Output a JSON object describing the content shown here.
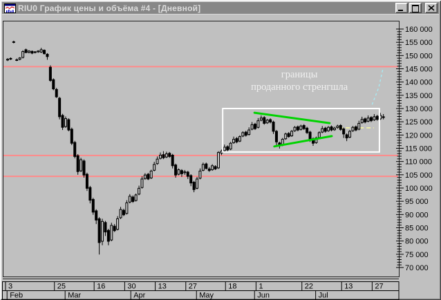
{
  "window": {
    "title": "RIU0 График цены и объёма #4 - [Дневной]",
    "icon": "price-volume-chart-icon",
    "controls": [
      {
        "name": "minimize",
        "label": "Свернуть"
      },
      {
        "name": "maximize",
        "label": "Развернуть"
      },
      {
        "name": "close",
        "label": "Закрыть"
      }
    ]
  },
  "chart_data": {
    "type": "candlestick",
    "instrument": "RIU0",
    "period": "Дневной",
    "background": "#c0c0c0",
    "candle_color": "#000000",
    "y_axis": {
      "min": 70000,
      "max": 160000,
      "major_step": 5000,
      "minor_step": 1000,
      "labels": [
        "160 000",
        "155 000",
        "150 000",
        "145 000",
        "140 000",
        "135 000",
        "130 000",
        "125 000",
        "120 000",
        "115 000",
        "110 000",
        "105 000",
        "100 000",
        "95 000",
        "90 000",
        "85 000",
        "80 000",
        "75 000",
        "70 000"
      ]
    },
    "x_axis": {
      "day_ticks": [
        {
          "label": "3",
          "i": 0
        },
        {
          "label": "25",
          "i": 16
        },
        {
          "label": "16",
          "i": 29
        },
        {
          "label": "30",
          "i": 39
        },
        {
          "label": "13",
          "i": 49
        },
        {
          "label": "27",
          "i": 59
        },
        {
          "label": "18",
          "i": 72
        },
        {
          "label": "1",
          "i": 82
        },
        {
          "label": "22",
          "i": 97
        },
        {
          "label": "13",
          "i": 110
        },
        {
          "label": "27",
          "i": 120
        }
      ],
      "months": [
        {
          "label": "Feb",
          "i": 0.5
        },
        {
          "label": "Mar",
          "i": 19.5
        },
        {
          "label": "Apr",
          "i": 41
        },
        {
          "label": "May",
          "i": 62.5
        },
        {
          "label": "Jun",
          "i": 81.5
        },
        {
          "label": "Jul",
          "i": 101.5
        }
      ]
    },
    "candles": [
      [
        148300,
        149000,
        147900,
        148600
      ],
      [
        148700,
        149300,
        148300,
        148900
      ],
      [
        155000,
        155600,
        154600,
        155200
      ],
      [
        148400,
        148900,
        147900,
        148200
      ],
      [
        148600,
        149400,
        148200,
        149100
      ],
      [
        149300,
        152000,
        148900,
        151500
      ],
      [
        152200,
        152600,
        150900,
        151100
      ],
      [
        151200,
        152000,
        150800,
        151700
      ],
      [
        151600,
        151900,
        150500,
        150900
      ],
      [
        151200,
        151700,
        150800,
        151400
      ],
      [
        151400,
        152000,
        151000,
        151700
      ],
      [
        151300,
        152900,
        151000,
        152200
      ],
      [
        152000,
        152300,
        150400,
        150700
      ],
      [
        150500,
        150900,
        148400,
        149600
      ],
      [
        145600,
        146300,
        140100,
        140600
      ],
      [
        140900,
        141400,
        136900,
        137400
      ],
      [
        137200,
        137800,
        134000,
        134400
      ],
      [
        133900,
        134400,
        125900,
        126900
      ],
      [
        127400,
        128000,
        121900,
        122900
      ],
      [
        123200,
        127000,
        122700,
        126200
      ],
      [
        125800,
        126300,
        121400,
        121900
      ],
      [
        122200,
        122800,
        116200,
        116900
      ],
      [
        117200,
        117800,
        111200,
        111900
      ],
      [
        112200,
        112800,
        105000,
        106200
      ],
      [
        106500,
        111400,
        106000,
        110700
      ],
      [
        110200,
        110800,
        103900,
        104900
      ],
      [
        105200,
        105800,
        98900,
        99900
      ],
      [
        100200,
        100800,
        94200,
        95400
      ],
      [
        95700,
        96300,
        89900,
        90900
      ],
      [
        91400,
        92000,
        86400,
        87900
      ],
      [
        88400,
        89000,
        74900,
        79400
      ],
      [
        79900,
        88400,
        78400,
        87400
      ],
      [
        87000,
        87600,
        81900,
        83400
      ],
      [
        84000,
        84600,
        78400,
        79900
      ],
      [
        80400,
        86900,
        79900,
        85900
      ],
      [
        85600,
        86400,
        83400,
        83900
      ],
      [
        84400,
        89400,
        84000,
        88400
      ],
      [
        88800,
        92900,
        88300,
        91900
      ],
      [
        91600,
        92200,
        89400,
        89900
      ],
      [
        90400,
        95400,
        90000,
        94400
      ],
      [
        94700,
        97700,
        94200,
        96900
      ],
      [
        96600,
        97200,
        94400,
        94900
      ],
      [
        95300,
        97900,
        94900,
        97400
      ],
      [
        97700,
        100900,
        97300,
        99900
      ],
      [
        100200,
        104400,
        99800,
        103400
      ],
      [
        103600,
        105600,
        103100,
        104900
      ],
      [
        105200,
        105700,
        103000,
        103400
      ],
      [
        103800,
        106900,
        103400,
        106400
      ],
      [
        106700,
        109900,
        106300,
        108900
      ],
      [
        109200,
        111900,
        108800,
        110900
      ],
      [
        111200,
        113400,
        110800,
        112400
      ],
      [
        112600,
        113900,
        110900,
        111400
      ],
      [
        111700,
        113700,
        111300,
        112900
      ],
      [
        113100,
        113600,
        111400,
        111900
      ],
      [
        112400,
        112900,
        107400,
        108400
      ],
      [
        108700,
        109200,
        103900,
        104900
      ],
      [
        105200,
        107400,
        104800,
        106900
      ],
      [
        106600,
        107100,
        104200,
        105400
      ],
      [
        105800,
        106800,
        105000,
        106100
      ],
      [
        106000,
        106500,
        103400,
        104400
      ],
      [
        104700,
        105200,
        100700,
        101900
      ],
      [
        102200,
        102700,
        98400,
        99400
      ],
      [
        99900,
        104200,
        99500,
        103400
      ],
      [
        103700,
        107400,
        103300,
        106400
      ],
      [
        106700,
        109600,
        106300,
        108900
      ],
      [
        109100,
        109600,
        107000,
        107400
      ],
      [
        107200,
        107900,
        106100,
        106600
      ],
      [
        106900,
        109000,
        106500,
        108400
      ],
      [
        108100,
        108600,
        106800,
        107200
      ],
      [
        107600,
        113900,
        107200,
        113400
      ],
      [
        113200,
        114500,
        112400,
        113900
      ],
      [
        114100,
        116400,
        113600,
        115400
      ],
      [
        115600,
        116100,
        113600,
        114400
      ],
      [
        114700,
        117400,
        114300,
        116900
      ],
      [
        117100,
        119400,
        116700,
        118400
      ],
      [
        118700,
        119200,
        116900,
        117400
      ],
      [
        117700,
        119900,
        117300,
        119400
      ],
      [
        119600,
        121400,
        119200,
        120900
      ],
      [
        121100,
        121600,
        119400,
        119900
      ],
      [
        120200,
        122900,
        119800,
        121900
      ],
      [
        122200,
        124900,
        121800,
        123900
      ],
      [
        124100,
        124600,
        121900,
        122400
      ],
      [
        122900,
        126400,
        122500,
        125400
      ],
      [
        125600,
        127400,
        125200,
        126400
      ],
      [
        126600,
        127100,
        123900,
        124400
      ],
      [
        124600,
        126100,
        124200,
        125600
      ],
      [
        125800,
        126300,
        124400,
        124900
      ],
      [
        124900,
        125400,
        120400,
        121400
      ],
      [
        121400,
        121900,
        115900,
        117400
      ],
      [
        117000,
        117500,
        114900,
        115900
      ],
      [
        116200,
        118900,
        115800,
        118400
      ],
      [
        118600,
        120900,
        118200,
        120400
      ],
      [
        120600,
        121100,
        119000,
        119400
      ],
      [
        119700,
        121900,
        119300,
        121400
      ],
      [
        121600,
        123400,
        121200,
        122900
      ],
      [
        123100,
        123600,
        121400,
        121900
      ],
      [
        122100,
        123900,
        121700,
        123400
      ],
      [
        123600,
        124100,
        121900,
        122400
      ],
      [
        122600,
        123100,
        120400,
        120900
      ],
      [
        121100,
        121600,
        117400,
        118400
      ],
      [
        118600,
        119100,
        115900,
        116900
      ],
      [
        117100,
        119400,
        116700,
        118900
      ],
      [
        119100,
        121400,
        118700,
        120900
      ],
      [
        121100,
        123400,
        120700,
        122400
      ],
      [
        122600,
        123100,
        120900,
        121400
      ],
      [
        121600,
        123400,
        121200,
        122900
      ],
      [
        123100,
        123600,
        121400,
        121900
      ],
      [
        122000,
        123100,
        121600,
        122600
      ],
      [
        122800,
        123900,
        122400,
        123400
      ],
      [
        123600,
        124100,
        121600,
        122100
      ],
      [
        122300,
        122800,
        118900,
        120400
      ],
      [
        120100,
        120600,
        117700,
        118900
      ],
      [
        119200,
        121900,
        118800,
        121400
      ],
      [
        121600,
        123400,
        121200,
        122900
      ],
      [
        123100,
        123600,
        121400,
        121900
      ],
      [
        122200,
        125400,
        121800,
        124400
      ],
      [
        124700,
        126900,
        124300,
        125900
      ],
      [
        126100,
        126600,
        124400,
        124900
      ],
      [
        125200,
        127400,
        124800,
        126400
      ],
      [
        126600,
        127100,
        124900,
        125400
      ],
      [
        125700,
        127900,
        125300,
        126900
      ],
      [
        127100,
        127600,
        125400,
        125900
      ],
      [
        126100,
        128400,
        125700,
        127400
      ],
      [
        126900,
        127900,
        125900,
        126600
      ]
    ],
    "support_resistance_lines": [
      {
        "price": 145800,
        "color": "#ff8a8a"
      },
      {
        "price": 112300,
        "color": "#ff8a8a"
      },
      {
        "price": 104400,
        "color": "#ff8a8a"
      }
    ],
    "trend_lines": [
      {
        "i1": 80.8,
        "price1": 128400,
        "i2": 105.4,
        "price2": 124500,
        "color": "#00d300"
      },
      {
        "i1": 87.3,
        "price1": 115700,
        "i2": 106.1,
        "price2": 119600,
        "color": "#00d300"
      }
    ],
    "highlight_box": {
      "i1": 70.4,
      "price_top": 130000,
      "i2": 121.7,
      "price_bottom": 113600,
      "color": "#ffffff"
    },
    "target_line": {
      "i1": 108.4,
      "i2": 119.9,
      "price": 122700,
      "color": "#ffff9a",
      "style": "dashed"
    },
    "forecast_line": {
      "points": [
        [
          119.3,
          131500
        ],
        [
          121.5,
          138000
        ],
        [
          122.9,
          145300
        ]
      ],
      "color": "#a8eaf2",
      "style": "dashed"
    },
    "annotation": {
      "text_lines": [
        "границы",
        "проданного стренгшла"
      ],
      "i": 95.5,
      "price": 141800,
      "color": "#f0f0f0"
    }
  }
}
